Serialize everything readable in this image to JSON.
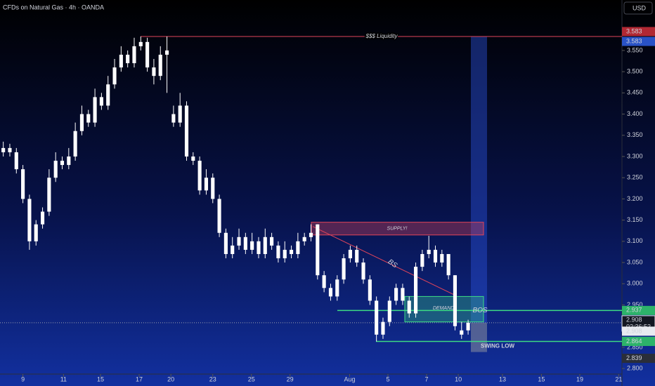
{
  "chart_data": {
    "type": "candlestick",
    "title": "CFDs on Natural Gas · 4h · OANDA",
    "currency": "USD",
    "up_color": "#ffffff",
    "down_color": "#ffffff",
    "x": [
      0,
      1,
      2,
      3,
      4,
      5,
      6,
      7,
      8,
      9,
      10,
      11,
      12,
      13,
      14,
      15,
      16,
      17,
      18,
      19,
      20,
      21,
      22,
      23,
      24,
      25,
      26,
      27,
      28,
      29,
      30,
      31,
      32,
      33,
      34,
      35,
      36,
      37,
      38,
      39,
      40,
      41,
      42,
      43,
      44,
      45,
      46,
      47,
      48,
      49,
      50,
      51,
      52,
      53,
      54,
      55,
      56,
      57,
      58,
      59,
      60,
      61,
      62,
      63,
      64,
      65,
      66,
      67,
      68,
      69,
      70,
      71
    ],
    "open": [
      3.31,
      3.32,
      3.31,
      3.27,
      3.2,
      3.1,
      3.14,
      3.17,
      3.25,
      3.29,
      3.28,
      3.3,
      3.36,
      3.4,
      3.38,
      3.44,
      3.42,
      3.47,
      3.51,
      3.54,
      3.52,
      3.56,
      3.57,
      3.51,
      3.49,
      3.54,
      3.4,
      3.38,
      3.42,
      3.3,
      3.29,
      3.22,
      3.25,
      3.2,
      3.12,
      3.07,
      3.09,
      3.11,
      3.08,
      3.1,
      3.07,
      3.11,
      3.09,
      3.06,
      3.08,
      3.07,
      3.1,
      3.11,
      3.14,
      3.02,
      2.99,
      2.97,
      3.01,
      3.06,
      3.08,
      3.05,
      3.01,
      2.96,
      2.88,
      2.91,
      2.96,
      2.99,
      2.96,
      2.93,
      3.04,
      3.07,
      3.08,
      3.05,
      3.07,
      3.02,
      2.88,
      2.89
    ],
    "high": [
      3.335,
      3.33,
      3.32,
      3.28,
      3.21,
      3.15,
      3.18,
      3.27,
      3.31,
      3.3,
      3.32,
      3.38,
      3.42,
      3.41,
      3.46,
      3.45,
      3.49,
      3.53,
      3.56,
      3.55,
      3.58,
      3.583,
      3.58,
      3.53,
      3.56,
      3.583,
      3.42,
      3.45,
      3.43,
      3.31,
      3.3,
      3.27,
      3.26,
      3.21,
      3.13,
      3.11,
      3.13,
      3.12,
      3.12,
      3.11,
      3.13,
      3.12,
      3.1,
      3.1,
      3.09,
      3.12,
      3.12,
      3.14,
      3.14,
      3.03,
      3.0,
      3.02,
      3.07,
      3.09,
      3.09,
      3.06,
      3.02,
      2.97,
      2.92,
      2.97,
      3.0,
      3.0,
      2.97,
      3.05,
      3.08,
      3.113,
      3.09,
      3.08,
      3.07,
      3.02,
      2.91,
      2.915
    ],
    "low": [
      3.3,
      3.3,
      3.26,
      3.19,
      3.08,
      3.09,
      3.13,
      3.16,
      3.24,
      3.27,
      3.27,
      3.29,
      3.35,
      3.37,
      3.37,
      3.41,
      3.41,
      3.46,
      3.5,
      3.51,
      3.51,
      3.55,
      3.5,
      3.47,
      3.48,
      3.45,
      3.37,
      3.37,
      3.29,
      3.28,
      3.21,
      3.21,
      3.19,
      3.11,
      3.06,
      3.06,
      3.08,
      3.07,
      3.07,
      3.06,
      3.06,
      3.08,
      3.05,
      3.05,
      3.06,
      3.06,
      3.09,
      3.1,
      3.01,
      2.98,
      2.96,
      2.96,
      3.0,
      3.05,
      3.04,
      3.0,
      2.95,
      2.864,
      2.87,
      2.9,
      2.95,
      2.95,
      2.92,
      2.92,
      3.03,
      3.06,
      3.04,
      3.04,
      3.01,
      2.89,
      2.87,
      2.88
    ],
    "close": [
      3.32,
      3.31,
      3.27,
      3.2,
      3.1,
      3.14,
      3.17,
      3.25,
      3.29,
      3.28,
      3.3,
      3.36,
      3.4,
      3.38,
      3.44,
      3.42,
      3.47,
      3.51,
      3.54,
      3.52,
      3.56,
      3.57,
      3.51,
      3.49,
      3.54,
      3.55,
      3.38,
      3.42,
      3.3,
      3.29,
      3.22,
      3.25,
      3.2,
      3.12,
      3.07,
      3.09,
      3.11,
      3.08,
      3.1,
      3.07,
      3.11,
      3.09,
      3.06,
      3.08,
      3.07,
      3.1,
      3.11,
      3.12,
      3.02,
      2.99,
      2.97,
      3.01,
      3.06,
      3.08,
      3.05,
      3.01,
      2.96,
      2.88,
      2.91,
      2.96,
      2.99,
      2.96,
      2.93,
      3.04,
      3.07,
      3.08,
      3.05,
      3.07,
      3.02,
      2.9,
      2.89,
      2.908
    ],
    "xlim": [
      -0.5,
      94.5
    ],
    "ylim": [
      2.787,
      3.669
    ],
    "xticks": [
      {
        "value": 3,
        "label": "9"
      },
      {
        "value": 9.2,
        "label": "11"
      },
      {
        "value": 14.85,
        "label": "15"
      },
      {
        "value": 20.75,
        "label": "17"
      },
      {
        "value": 25.6,
        "label": "20"
      },
      {
        "value": 32,
        "label": "23"
      },
      {
        "value": 37.9,
        "label": "25"
      },
      {
        "value": 43.8,
        "label": "29"
      },
      {
        "value": 52.9,
        "label": "Aug"
      },
      {
        "value": 58.75,
        "label": "5"
      },
      {
        "value": 64.66,
        "label": "7"
      },
      {
        "value": 69.5,
        "label": "10"
      },
      {
        "value": 76.25,
        "label": "13"
      },
      {
        "value": 82.2,
        "label": "15"
      },
      {
        "value": 88.06,
        "label": "19"
      },
      {
        "value": 94,
        "label": "21"
      }
    ],
    "yticks": [
      {
        "value": 2.8,
        "label": "2.800"
      },
      {
        "value": 2.85,
        "label": "2.850"
      },
      {
        "value": 2.95,
        "label": "2.950"
      },
      {
        "value": 3.0,
        "label": "3.000"
      },
      {
        "value": 3.05,
        "label": "3.050"
      },
      {
        "value": 3.1,
        "label": "3.100"
      },
      {
        "value": 3.15,
        "label": "3.150"
      },
      {
        "value": 3.2,
        "label": "3.200"
      },
      {
        "value": 3.25,
        "label": "3.250"
      },
      {
        "value": 3.3,
        "label": "3.300"
      },
      {
        "value": 3.35,
        "label": "3.350"
      },
      {
        "value": 3.4,
        "label": "3.400"
      },
      {
        "value": 3.45,
        "label": "3.450"
      },
      {
        "value": 3.5,
        "label": "3.500"
      },
      {
        "value": 3.55,
        "label": "3.550"
      }
    ],
    "price_labels": [
      {
        "value": 3.583,
        "label": "3.583",
        "color": "#b22833"
      },
      {
        "value": 3.583,
        "label": "3.583",
        "color": "#2952c6"
      },
      {
        "value": 2.937,
        "label": "2.937",
        "color": "#2db36a"
      },
      {
        "value": 2.908,
        "label": "2.908",
        "color": "#e8eaf0",
        "countdown": "02:36:52"
      },
      {
        "value": 2.908,
        "label": "2.908",
        "color": "#e8eaf0"
      },
      {
        "value": 2.864,
        "label": "2.864",
        "color": "#2db36a"
      },
      {
        "value": 2.839,
        "label": "2.839",
        "color": "#2a2e39"
      }
    ],
    "annotations": {
      "liquidity": {
        "text": "$$$ Liquidity",
        "value": 3.583,
        "color": "#e0445a"
      },
      "supply": {
        "text": "SUPPLY!",
        "top": 3.145,
        "bottom": 3.115,
        "color": "#e0445a"
      },
      "trendline": {
        "text": "BS",
        "start": 3.135,
        "end": 2.975,
        "color": "#e0445a"
      },
      "demand": {
        "text": "DEMAND!",
        "top": 2.97,
        "bottom": 2.91,
        "color": "#3ddc84"
      },
      "bos": {
        "text": "BOS",
        "value": 2.937,
        "color": "#3ddc84"
      },
      "swing_low": {
        "text": "SWING LOW",
        "value": 2.864,
        "color": "#3ddc84"
      },
      "projection": {
        "top": 3.583,
        "bottom": 2.908,
        "stop": 2.839
      }
    }
  }
}
